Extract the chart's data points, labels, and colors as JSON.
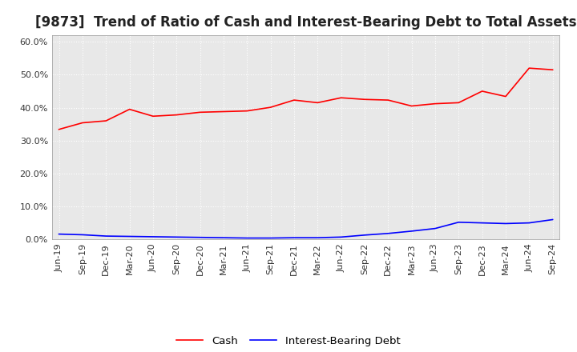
{
  "title": "[9873]  Trend of Ratio of Cash and Interest-Bearing Debt to Total Assets",
  "x_labels": [
    "Jun-19",
    "Sep-19",
    "Dec-19",
    "Mar-20",
    "Jun-20",
    "Sep-20",
    "Dec-20",
    "Mar-21",
    "Jun-21",
    "Sep-21",
    "Dec-21",
    "Mar-22",
    "Jun-22",
    "Sep-22",
    "Dec-22",
    "Mar-23",
    "Jun-23",
    "Sep-23",
    "Dec-23",
    "Mar-24",
    "Jun-24",
    "Sep-24"
  ],
  "cash": [
    0.334,
    0.354,
    0.36,
    0.395,
    0.374,
    0.378,
    0.386,
    0.388,
    0.39,
    0.401,
    0.423,
    0.415,
    0.43,
    0.425,
    0.423,
    0.405,
    0.412,
    0.415,
    0.45,
    0.434,
    0.52,
    0.515
  ],
  "interest_bearing_debt": [
    0.016,
    0.014,
    0.01,
    0.009,
    0.008,
    0.007,
    0.006,
    0.005,
    0.004,
    0.004,
    0.005,
    0.005,
    0.007,
    0.013,
    0.018,
    0.025,
    0.033,
    0.052,
    0.05,
    0.048,
    0.05,
    0.06
  ],
  "cash_color": "#ff0000",
  "debt_color": "#0000ff",
  "background_color": "#ffffff",
  "plot_bg_color": "#e8e8e8",
  "grid_color": "#ffffff",
  "ylim": [
    0.0,
    0.62
  ],
  "yticks": [
    0.0,
    0.1,
    0.2,
    0.3,
    0.4,
    0.5,
    0.6
  ],
  "legend_cash": "Cash",
  "legend_debt": "Interest-Bearing Debt",
  "title_fontsize": 12,
  "tick_fontsize": 8,
  "legend_fontsize": 9.5,
  "linewidth": 1.2
}
